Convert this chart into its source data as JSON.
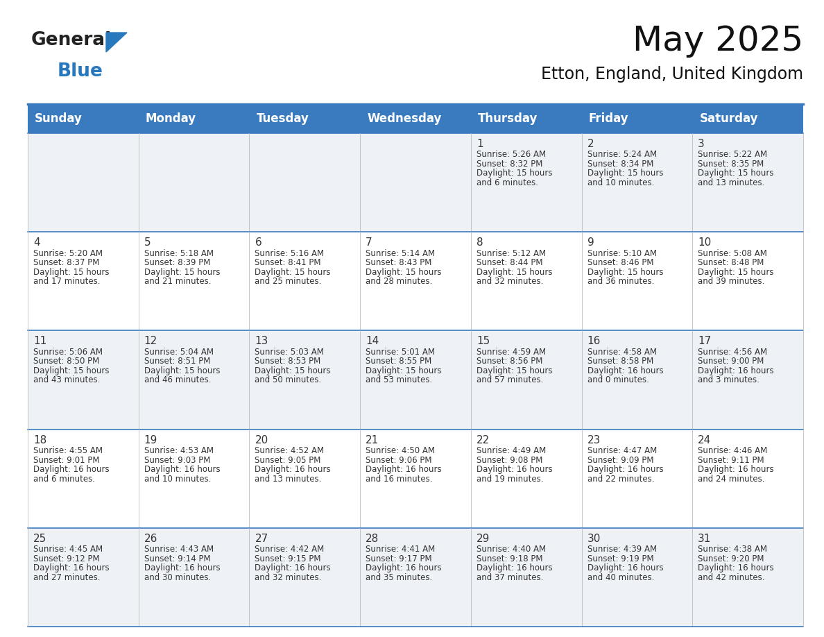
{
  "title": "May 2025",
  "subtitle": "Etton, England, United Kingdom",
  "days_of_week": [
    "Sunday",
    "Monday",
    "Tuesday",
    "Wednesday",
    "Thursday",
    "Friday",
    "Saturday"
  ],
  "header_bg": "#3a7bbf",
  "header_text": "#ffffff",
  "row_bg_odd": "#eef2f7",
  "row_bg_even": "#ffffff",
  "border_color": "#3a7bbf",
  "text_color": "#333333",
  "calendar": [
    [
      null,
      null,
      null,
      null,
      {
        "day": "1",
        "sunrise": "5:26 AM",
        "sunset": "8:32 PM",
        "daylight": "15 hours",
        "daylight2": "and 6 minutes."
      },
      {
        "day": "2",
        "sunrise": "5:24 AM",
        "sunset": "8:34 PM",
        "daylight": "15 hours",
        "daylight2": "and 10 minutes."
      },
      {
        "day": "3",
        "sunrise": "5:22 AM",
        "sunset": "8:35 PM",
        "daylight": "15 hours",
        "daylight2": "and 13 minutes."
      }
    ],
    [
      {
        "day": "4",
        "sunrise": "5:20 AM",
        "sunset": "8:37 PM",
        "daylight": "15 hours",
        "daylight2": "and 17 minutes."
      },
      {
        "day": "5",
        "sunrise": "5:18 AM",
        "sunset": "8:39 PM",
        "daylight": "15 hours",
        "daylight2": "and 21 minutes."
      },
      {
        "day": "6",
        "sunrise": "5:16 AM",
        "sunset": "8:41 PM",
        "daylight": "15 hours",
        "daylight2": "and 25 minutes."
      },
      {
        "day": "7",
        "sunrise": "5:14 AM",
        "sunset": "8:43 PM",
        "daylight": "15 hours",
        "daylight2": "and 28 minutes."
      },
      {
        "day": "8",
        "sunrise": "5:12 AM",
        "sunset": "8:44 PM",
        "daylight": "15 hours",
        "daylight2": "and 32 minutes."
      },
      {
        "day": "9",
        "sunrise": "5:10 AM",
        "sunset": "8:46 PM",
        "daylight": "15 hours",
        "daylight2": "and 36 minutes."
      },
      {
        "day": "10",
        "sunrise": "5:08 AM",
        "sunset": "8:48 PM",
        "daylight": "15 hours",
        "daylight2": "and 39 minutes."
      }
    ],
    [
      {
        "day": "11",
        "sunrise": "5:06 AM",
        "sunset": "8:50 PM",
        "daylight": "15 hours",
        "daylight2": "and 43 minutes."
      },
      {
        "day": "12",
        "sunrise": "5:04 AM",
        "sunset": "8:51 PM",
        "daylight": "15 hours",
        "daylight2": "and 46 minutes."
      },
      {
        "day": "13",
        "sunrise": "5:03 AM",
        "sunset": "8:53 PM",
        "daylight": "15 hours",
        "daylight2": "and 50 minutes."
      },
      {
        "day": "14",
        "sunrise": "5:01 AM",
        "sunset": "8:55 PM",
        "daylight": "15 hours",
        "daylight2": "and 53 minutes."
      },
      {
        "day": "15",
        "sunrise": "4:59 AM",
        "sunset": "8:56 PM",
        "daylight": "15 hours",
        "daylight2": "and 57 minutes."
      },
      {
        "day": "16",
        "sunrise": "4:58 AM",
        "sunset": "8:58 PM",
        "daylight": "16 hours",
        "daylight2": "and 0 minutes."
      },
      {
        "day": "17",
        "sunrise": "4:56 AM",
        "sunset": "9:00 PM",
        "daylight": "16 hours",
        "daylight2": "and 3 minutes."
      }
    ],
    [
      {
        "day": "18",
        "sunrise": "4:55 AM",
        "sunset": "9:01 PM",
        "daylight": "16 hours",
        "daylight2": "and 6 minutes."
      },
      {
        "day": "19",
        "sunrise": "4:53 AM",
        "sunset": "9:03 PM",
        "daylight": "16 hours",
        "daylight2": "and 10 minutes."
      },
      {
        "day": "20",
        "sunrise": "4:52 AM",
        "sunset": "9:05 PM",
        "daylight": "16 hours",
        "daylight2": "and 13 minutes."
      },
      {
        "day": "21",
        "sunrise": "4:50 AM",
        "sunset": "9:06 PM",
        "daylight": "16 hours",
        "daylight2": "and 16 minutes."
      },
      {
        "day": "22",
        "sunrise": "4:49 AM",
        "sunset": "9:08 PM",
        "daylight": "16 hours",
        "daylight2": "and 19 minutes."
      },
      {
        "day": "23",
        "sunrise": "4:47 AM",
        "sunset": "9:09 PM",
        "daylight": "16 hours",
        "daylight2": "and 22 minutes."
      },
      {
        "day": "24",
        "sunrise": "4:46 AM",
        "sunset": "9:11 PM",
        "daylight": "16 hours",
        "daylight2": "and 24 minutes."
      }
    ],
    [
      {
        "day": "25",
        "sunrise": "4:45 AM",
        "sunset": "9:12 PM",
        "daylight": "16 hours",
        "daylight2": "and 27 minutes."
      },
      {
        "day": "26",
        "sunrise": "4:43 AM",
        "sunset": "9:14 PM",
        "daylight": "16 hours",
        "daylight2": "and 30 minutes."
      },
      {
        "day": "27",
        "sunrise": "4:42 AM",
        "sunset": "9:15 PM",
        "daylight": "16 hours",
        "daylight2": "and 32 minutes."
      },
      {
        "day": "28",
        "sunrise": "4:41 AM",
        "sunset": "9:17 PM",
        "daylight": "16 hours",
        "daylight2": "and 35 minutes."
      },
      {
        "day": "29",
        "sunrise": "4:40 AM",
        "sunset": "9:18 PM",
        "daylight": "16 hours",
        "daylight2": "and 37 minutes."
      },
      {
        "day": "30",
        "sunrise": "4:39 AM",
        "sunset": "9:19 PM",
        "daylight": "16 hours",
        "daylight2": "and 40 minutes."
      },
      {
        "day": "31",
        "sunrise": "4:38 AM",
        "sunset": "9:20 PM",
        "daylight": "16 hours",
        "daylight2": "and 42 minutes."
      }
    ]
  ],
  "logo_color_general": "#222222",
  "logo_color_blue": "#2878be",
  "logo_triangle_color": "#2878be",
  "fig_width": 11.88,
  "fig_height": 9.18,
  "dpi": 100
}
